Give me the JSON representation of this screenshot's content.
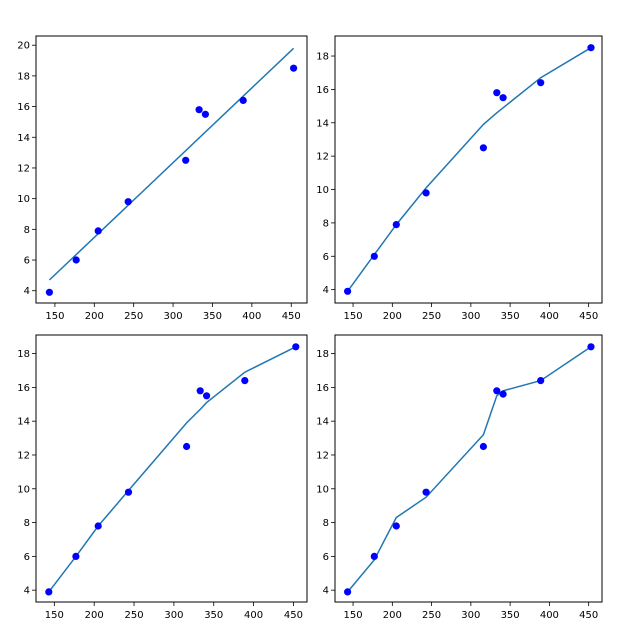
{
  "chart_data": [
    {
      "type": "scatter",
      "title": "",
      "xlabel": "",
      "ylabel": "",
      "xlim": [
        126,
        470
      ],
      "ylim": [
        3.2,
        20.6
      ],
      "xticks": [
        150,
        200,
        250,
        300,
        350,
        400,
        450
      ],
      "yticks": [
        4,
        6,
        8,
        10,
        12,
        14,
        16,
        18,
        20
      ],
      "grid": false,
      "legend": "none",
      "points": {
        "x": [
          143,
          177,
          205,
          243,
          316,
          333,
          341,
          389,
          453
        ],
        "y": [
          3.9,
          6.0,
          7.9,
          9.8,
          12.5,
          15.8,
          15.5,
          16.4,
          18.5
        ],
        "color": "#0000ff"
      },
      "line": {
        "x": [
          143,
          453
        ],
        "y": [
          4.7,
          19.8
        ],
        "color": "#1f77b4"
      }
    },
    {
      "type": "scatter",
      "title": "",
      "xlabel": "",
      "ylabel": "",
      "xlim": [
        127,
        467
      ],
      "ylim": [
        3.2,
        19.2
      ],
      "xticks": [
        150,
        200,
        250,
        300,
        350,
        400,
        450
      ],
      "yticks": [
        4,
        6,
        8,
        10,
        12,
        14,
        16,
        18
      ],
      "grid": false,
      "legend": "none",
      "points": {
        "x": [
          143,
          177,
          205,
          243,
          316,
          333,
          341,
          389,
          453
        ],
        "y": [
          3.9,
          6.0,
          7.9,
          9.8,
          12.5,
          15.8,
          15.5,
          16.4,
          18.5
        ],
        "color": "#0000ff"
      },
      "line": {
        "x": [
          143,
          177,
          205,
          243,
          316,
          333,
          341,
          389,
          453
        ],
        "y": [
          3.9,
          6.1,
          7.9,
          10.1,
          13.9,
          14.6,
          14.9,
          16.7,
          18.5
        ],
        "color": "#1f77b4"
      }
    },
    {
      "type": "scatter",
      "title": "",
      "xlabel": "",
      "ylabel": "",
      "xlim": [
        127,
        467
      ],
      "ylim": [
        3.3,
        19.1
      ],
      "xticks": [
        150,
        200,
        250,
        300,
        350,
        400,
        450
      ],
      "yticks": [
        4,
        6,
        8,
        10,
        12,
        14,
        16,
        18
      ],
      "grid": false,
      "legend": "none",
      "points": {
        "x": [
          143,
          177,
          205,
          243,
          316,
          333,
          341,
          389,
          453
        ],
        "y": [
          3.9,
          6.0,
          7.8,
          9.8,
          12.5,
          15.8,
          15.5,
          16.4,
          18.4
        ],
        "color": "#0000ff"
      },
      "line": {
        "x": [
          143,
          177,
          205,
          243,
          316,
          333,
          341,
          389,
          453
        ],
        "y": [
          3.9,
          6.0,
          7.8,
          9.9,
          13.9,
          14.7,
          15.1,
          16.9,
          18.4
        ],
        "color": "#1f77b4"
      }
    },
    {
      "type": "scatter",
      "title": "",
      "xlabel": "",
      "ylabel": "",
      "xlim": [
        127,
        467
      ],
      "ylim": [
        3.3,
        19.1
      ],
      "xticks": [
        150,
        200,
        250,
        300,
        350,
        400,
        450
      ],
      "yticks": [
        4,
        6,
        8,
        10,
        12,
        14,
        16,
        18
      ],
      "grid": false,
      "legend": "none",
      "points": {
        "x": [
          143,
          177,
          205,
          243,
          316,
          333,
          341,
          389,
          453
        ],
        "y": [
          3.9,
          6.0,
          7.8,
          9.8,
          12.5,
          15.8,
          15.6,
          16.4,
          18.4
        ],
        "color": "#0000ff"
      },
      "line": {
        "x": [
          143,
          177,
          205,
          243,
          316,
          333,
          341,
          389,
          453
        ],
        "y": [
          3.9,
          5.8,
          8.3,
          9.5,
          13.2,
          15.5,
          15.8,
          16.4,
          18.4
        ],
        "color": "#1f77b4"
      }
    }
  ]
}
